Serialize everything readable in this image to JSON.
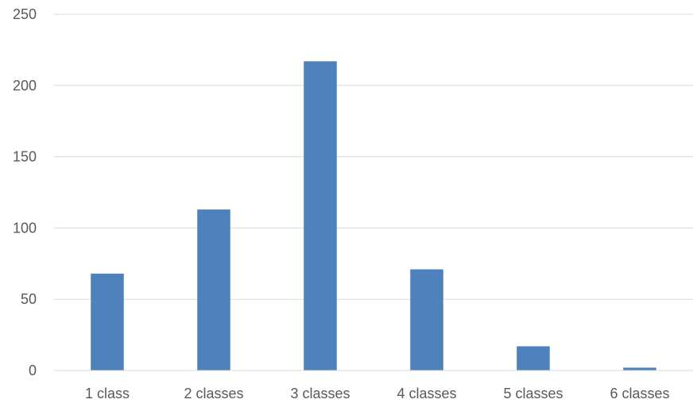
{
  "chart_data": {
    "type": "bar",
    "title": "",
    "xlabel": "",
    "ylabel": "",
    "categories": [
      "1 class",
      "2 classes",
      "3 classes",
      "4 classes",
      "5 classes",
      "6 classes"
    ],
    "values": [
      68,
      113,
      217,
      71,
      17,
      2
    ],
    "ylim": [
      0,
      250
    ],
    "yticks": [
      "0",
      "50",
      "100",
      "150",
      "200",
      "250"
    ],
    "grid": true,
    "legend": "none",
    "bar_color": "#4f81bd"
  }
}
